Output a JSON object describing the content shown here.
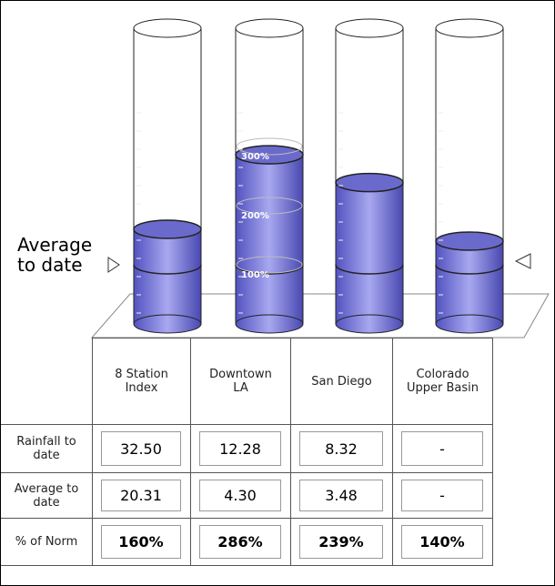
{
  "chart_data": {
    "type": "cylinder",
    "categories": [
      "8 Station Index",
      "Downtown LA",
      "San Diego",
      "Colorado Upper Basin"
    ],
    "values": [
      160,
      286,
      239,
      140
    ],
    "value_labels": [
      "160%",
      "286%",
      "239%",
      "140%"
    ],
    "color": "#7474d8",
    "ylim": [
      0,
      500
    ],
    "yticks": [
      {
        "value": 100,
        "label": "100%"
      },
      {
        "value": 200,
        "label": "200%"
      },
      {
        "value": 300,
        "label": "300%"
      }
    ],
    "marker_label": "Average to date",
    "marker_value": 100
  },
  "table": {
    "rows": [
      {
        "label": "Rainfall to date",
        "values": [
          "32.50",
          "12.28",
          "8.32",
          "-"
        ]
      },
      {
        "label": "Average to date",
        "values": [
          "20.31",
          "4.30",
          "3.48",
          "-"
        ]
      }
    ],
    "percent_row_label": "% of Norm"
  }
}
